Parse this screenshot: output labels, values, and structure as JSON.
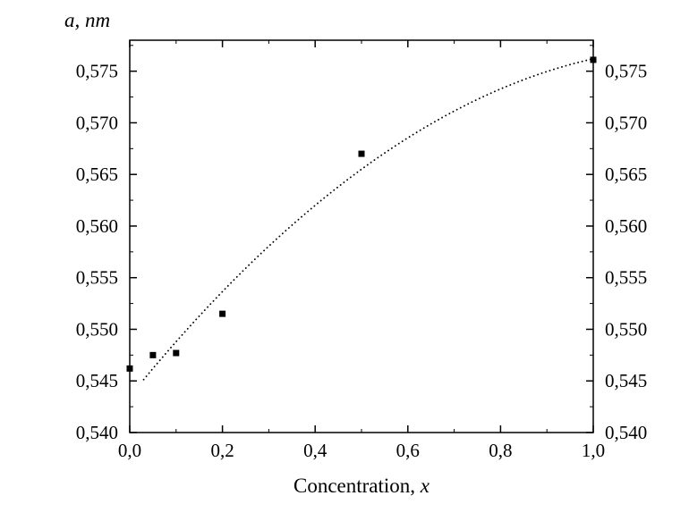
{
  "chart_data": {
    "type": "scatter",
    "title": "a, nm",
    "xlabel": "Concentration, x",
    "xlabel_prefix": "Concentration, ",
    "xlabel_var": "x",
    "xlim": [
      0.0,
      1.0
    ],
    "ylim": [
      0.54,
      0.578
    ],
    "x_ticks": [
      {
        "v": 0.0,
        "label": "0,0"
      },
      {
        "v": 0.2,
        "label": "0,2"
      },
      {
        "v": 0.4,
        "label": "0,4"
      },
      {
        "v": 0.6,
        "label": "0,6"
      },
      {
        "v": 0.8,
        "label": "0,8"
      },
      {
        "v": 1.0,
        "label": "1,0"
      }
    ],
    "y_ticks": [
      {
        "v": 0.54,
        "label": "0,540"
      },
      {
        "v": 0.545,
        "label": "0,545"
      },
      {
        "v": 0.55,
        "label": "0,550"
      },
      {
        "v": 0.555,
        "label": "0,555"
      },
      {
        "v": 0.56,
        "label": "0,560"
      },
      {
        "v": 0.565,
        "label": "0,565"
      },
      {
        "v": 0.57,
        "label": "0,570"
      },
      {
        "v": 0.575,
        "label": "0,575"
      }
    ],
    "x_minor_step": 0.1,
    "y_minor_step": 0.0025,
    "right_axis_labels": true,
    "points": [
      {
        "x": 0.0,
        "y": 0.5462
      },
      {
        "x": 0.05,
        "y": 0.5475
      },
      {
        "x": 0.1,
        "y": 0.5477
      },
      {
        "x": 0.2,
        "y": 0.5515
      },
      {
        "x": 0.5,
        "y": 0.567
      },
      {
        "x": 1.0,
        "y": 0.5761
      }
    ],
    "trend": {
      "style": "dotted",
      "model": "quadratic",
      "a0": 0.54349,
      "b": 0.05533,
      "c": -0.02262,
      "x_start": 0.03,
      "x_end": 1.0
    },
    "marker": {
      "shape": "square",
      "size": 7,
      "color": "#000000"
    },
    "axis_color": "#000000",
    "grid": false,
    "background": "#ffffff"
  }
}
